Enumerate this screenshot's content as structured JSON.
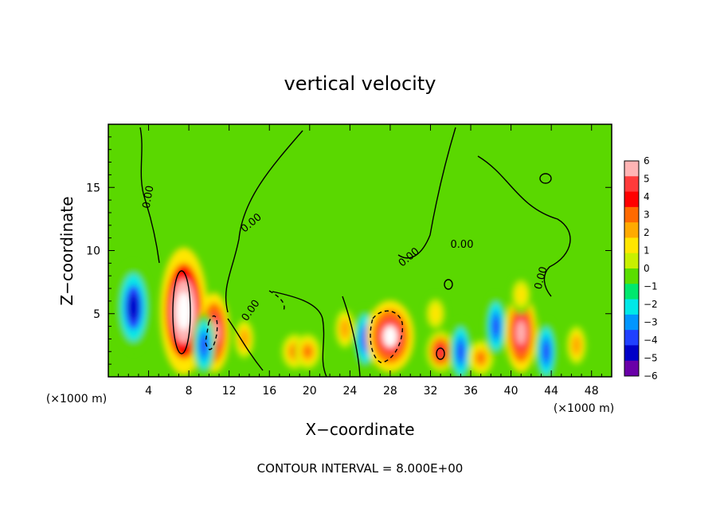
{
  "chart_data": {
    "type": "heatmap",
    "title": "vertical velocity",
    "xlabel": "X−coordinate",
    "ylabel": "Z−coordinate",
    "x_unit_label": "(×1000 m)",
    "x_unit_label_right": "(×1000 m)",
    "xlim": [
      0,
      50
    ],
    "ylim": [
      0,
      20
    ],
    "x_ticks": [
      4,
      8,
      12,
      16,
      20,
      24,
      28,
      32,
      36,
      40,
      44,
      48
    ],
    "x_tick_labels": [
      "4",
      "8",
      "12",
      "16",
      "20",
      "24",
      "28",
      "32",
      "36",
      "40",
      "44",
      "48"
    ],
    "y_ticks": [
      5,
      10,
      15
    ],
    "y_tick_labels": [
      "5",
      "10",
      "15"
    ],
    "colorbar": {
      "min": -6,
      "max": 6,
      "labels": [
        "6",
        "5",
        "4",
        "3",
        "2",
        "1",
        "0",
        "−1",
        "−2",
        "−3",
        "−4",
        "−5",
        "−6"
      ],
      "colors": [
        "#ffb4b4",
        "#ff3a3a",
        "#ff0000",
        "#ff6a00",
        "#ffaa00",
        "#ffe600",
        "#c8f000",
        "#5ade00",
        "#00e86e",
        "#00e8e8",
        "#0096ff",
        "#2040ff",
        "#0000c8",
        "#6a00a8"
      ]
    },
    "contour_labels": [
      "0.00",
      "0.00",
      "0.00",
      "0.00",
      "0.00",
      "0.00"
    ],
    "features": [
      {
        "x": 2.5,
        "z": 5.5,
        "w": -7
      },
      {
        "x": 7.5,
        "z": 5.2,
        "w": 10
      },
      {
        "x": 10.5,
        "z": 3.5,
        "w": 8
      },
      {
        "x": 9.5,
        "z": 2.5,
        "w": -6
      },
      {
        "x": 13.5,
        "z": 3.0,
        "w": 4
      },
      {
        "x": 18.5,
        "z": 2.0,
        "w": 5
      },
      {
        "x": 19.8,
        "z": 2.0,
        "w": 5
      },
      {
        "x": 23.5,
        "z": 3.8,
        "w": 4
      },
      {
        "x": 25.5,
        "z": 3.0,
        "w": -6
      },
      {
        "x": 28.0,
        "z": 3.2,
        "w": 9
      },
      {
        "x": 33.0,
        "z": 2.0,
        "w": 7
      },
      {
        "x": 32.5,
        "z": 5.0,
        "w": 3
      },
      {
        "x": 35.0,
        "z": 2.0,
        "w": -6
      },
      {
        "x": 37.0,
        "z": 1.5,
        "w": 5
      },
      {
        "x": 38.5,
        "z": 4.0,
        "w": -6
      },
      {
        "x": 41.0,
        "z": 3.5,
        "w": 8
      },
      {
        "x": 41.0,
        "z": 6.5,
        "w": 3
      },
      {
        "x": 43.5,
        "z": 2.0,
        "w": -6
      },
      {
        "x": 46.5,
        "z": 2.5,
        "w": 4
      }
    ]
  },
  "footer": {
    "contour_interval": "CONTOUR INTERVAL = 8.000E+00"
  }
}
